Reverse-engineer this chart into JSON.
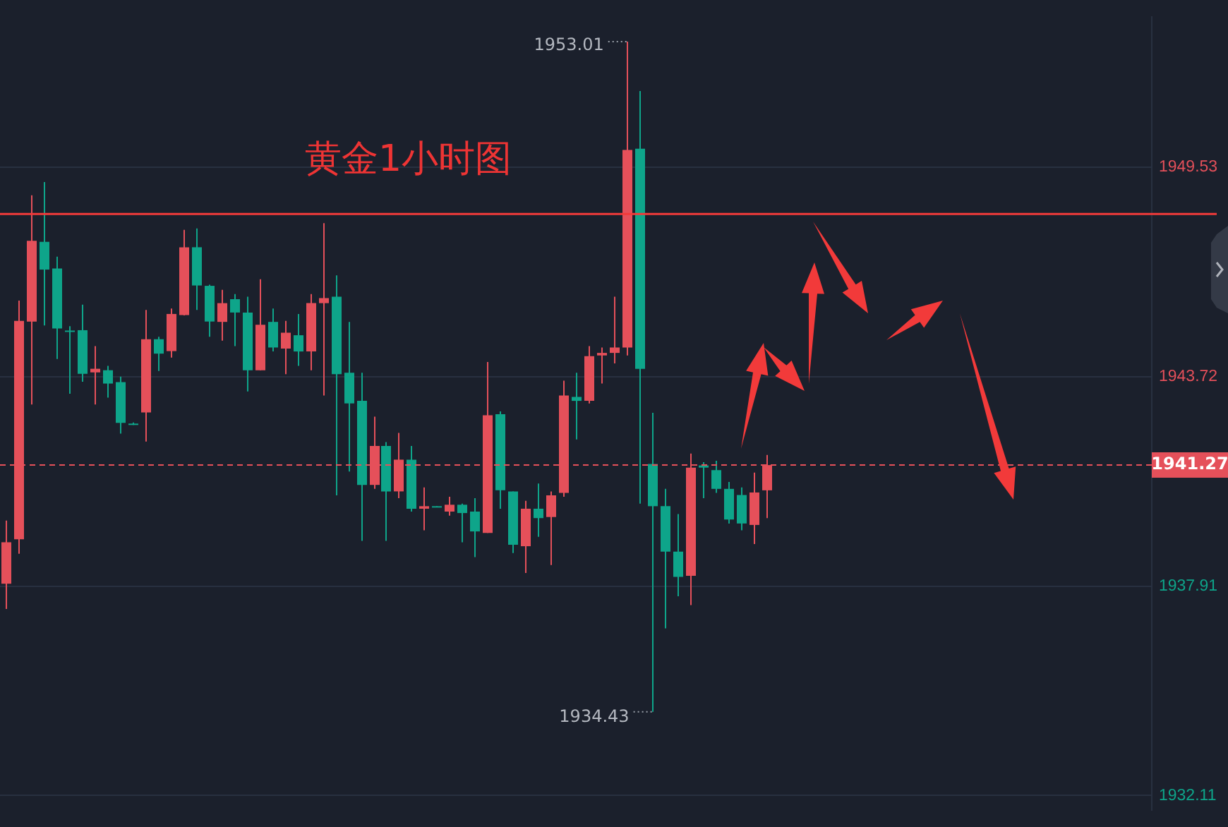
{
  "chart_data": {
    "type": "candlestick",
    "title": "黄金1小时图",
    "categories": [
      null,
      null,
      null,
      null,
      null,
      null,
      null,
      null,
      null,
      null,
      null,
      null,
      null,
      null,
      null,
      null,
      null,
      null,
      null,
      null,
      null,
      null,
      null,
      null,
      null,
      null,
      null,
      null,
      null,
      null,
      null,
      null,
      null,
      null,
      null,
      null,
      null,
      null,
      null,
      null,
      null,
      null,
      null,
      null,
      null,
      null,
      null,
      null,
      null,
      null,
      null,
      null,
      null,
      null,
      null,
      null,
      null,
      null,
      null,
      null,
      null,
      null,
      null,
      null,
      null,
      null,
      null,
      null,
      null,
      null,
      null,
      null,
      null,
      null,
      null,
      null,
      null,
      null,
      null,
      null,
      null,
      null,
      null,
      null,
      null,
      null,
      null,
      null,
      null,
      null,
      null
    ],
    "ohlc": [
      [
        1937.98,
        1939.73,
        1937.28,
        1939.13
      ],
      [
        1939.21,
        1945.83,
        1938.81,
        1945.27
      ],
      [
        1945.25,
        1948.75,
        1942.95,
        1947.49
      ],
      [
        1947.46,
        1949.12,
        1945.14,
        1946.69
      ],
      [
        1946.72,
        1947.05,
        1944.21,
        1945.06
      ],
      [
        1945.0,
        1945.12,
        1943.25,
        1944.98
      ],
      [
        1945.01,
        1945.72,
        1943.58,
        1943.8
      ],
      [
        1943.84,
        1944.57,
        1942.95,
        1943.94
      ],
      [
        1943.9,
        1944.02,
        1943.14,
        1943.53
      ],
      [
        1943.57,
        1943.72,
        1942.14,
        1942.44
      ],
      [
        1942.42,
        1942.45,
        1942.38,
        1942.41
      ],
      [
        1942.73,
        1945.57,
        1941.92,
        1944.76
      ],
      [
        1944.76,
        1944.83,
        1943.88,
        1944.36
      ],
      [
        1944.43,
        1945.61,
        1944.25,
        1945.46
      ],
      [
        1945.43,
        1947.79,
        1945.42,
        1947.31
      ],
      [
        1947.31,
        1947.83,
        1945.57,
        1946.25
      ],
      [
        1946.24,
        1946.27,
        1944.83,
        1945.25
      ],
      [
        1945.24,
        1946.13,
        1944.72,
        1945.76
      ],
      [
        1945.87,
        1946.01,
        1944.57,
        1945.5
      ],
      [
        1945.5,
        1945.94,
        1943.31,
        1943.9
      ],
      [
        1943.9,
        1946.42,
        1943.9,
        1945.16
      ],
      [
        1945.24,
        1945.61,
        1944.42,
        1944.53
      ],
      [
        1944.5,
        1945.27,
        1943.79,
        1944.94
      ],
      [
        1944.87,
        1945.46,
        1944.02,
        1944.42
      ],
      [
        1944.42,
        1946.01,
        1943.9,
        1945.76
      ],
      [
        1945.76,
        1947.98,
        1943.2,
        1945.9
      ],
      [
        1945.94,
        1946.53,
        1940.43,
        1943.79
      ],
      [
        1943.83,
        1945.24,
        1941.09,
        1942.98
      ],
      [
        1943.05,
        1943.83,
        1939.17,
        1940.72
      ],
      [
        1940.72,
        1942.61,
        1940.61,
        1941.8
      ],
      [
        1941.8,
        1941.91,
        1939.17,
        1940.54
      ],
      [
        1940.54,
        1942.16,
        1940.35,
        1941.42
      ],
      [
        1941.42,
        1941.8,
        1939.98,
        1940.06
      ],
      [
        1940.06,
        1940.65,
        1939.46,
        1940.13
      ],
      [
        1940.13,
        1940.13,
        1940.11,
        1940.11
      ],
      [
        1939.98,
        1940.39,
        1939.87,
        1940.17
      ],
      [
        1940.17,
        1940.2,
        1939.13,
        1939.94
      ],
      [
        1939.98,
        1940.35,
        1938.72,
        1939.43
      ],
      [
        1939.39,
        1944.13,
        1939.39,
        1942.65
      ],
      [
        1942.68,
        1942.76,
        1940.06,
        1940.57
      ],
      [
        1940.54,
        1940.54,
        1938.83,
        1939.06
      ],
      [
        1939.02,
        1940.28,
        1938.28,
        1940.06
      ],
      [
        1940.06,
        1940.76,
        1939.28,
        1939.8
      ],
      [
        1939.83,
        1940.54,
        1938.5,
        1940.43
      ],
      [
        1940.5,
        1943.61,
        1940.39,
        1943.2
      ],
      [
        1943.16,
        1943.83,
        1941.98,
        1943.05
      ],
      [
        1943.05,
        1944.57,
        1942.98,
        1944.29
      ],
      [
        1944.31,
        1944.53,
        1943.53,
        1944.38
      ],
      [
        1944.38,
        1945.94,
        1944.09,
        1944.53
      ],
      [
        1944.53,
        1953.01,
        1944.31,
        1950.01
      ],
      [
        1950.04,
        1951.64,
        1940.2,
        1943.94
      ],
      [
        1941.3,
        1942.72,
        1934.43,
        1940.13
      ],
      [
        1940.13,
        1940.61,
        1936.74,
        1938.87
      ],
      [
        1938.87,
        1939.91,
        1937.63,
        1938.17
      ],
      [
        1938.2,
        1941.59,
        1937.39,
        1941.2
      ],
      [
        1941.26,
        1941.35,
        1940.35,
        1941.2
      ],
      [
        1941.13,
        1941.39,
        1940.5,
        1940.61
      ],
      [
        1940.61,
        1940.8,
        1939.65,
        1939.76
      ],
      [
        1940.44,
        1940.65,
        1939.46,
        1939.65
      ],
      [
        1939.61,
        1941.06,
        1939.08,
        1940.51
      ],
      [
        1940.57,
        1941.55,
        1939.8,
        1941.27
      ],
      null,
      null,
      null,
      null,
      null,
      null,
      null,
      null,
      null,
      null,
      null,
      null,
      null,
      null,
      null,
      null,
      null,
      null,
      null,
      null,
      null,
      null,
      null,
      null,
      null,
      null,
      null,
      null,
      null,
      null
    ],
    "colors": [
      "#e5505a",
      "#e5505a",
      "#e5505a",
      "#0ea58a",
      "#0ea58a",
      "#0ea58a",
      "#0ea58a",
      "#e5505a",
      "#0ea58a",
      "#0ea58a",
      "#0ea58a",
      "#e5505a",
      "#0ea58a",
      "#e5505a",
      "#e5505a",
      "#0ea58a",
      "#0ea58a",
      "#e5505a",
      "#0ea58a",
      "#0ea58a",
      "#e5505a",
      "#0ea58a",
      "#e5505a",
      "#0ea58a",
      "#e5505a",
      "#e5505a",
      "#0ea58a",
      "#0ea58a",
      "#0ea58a",
      "#e5505a",
      "#0ea58a",
      "#e5505a",
      "#0ea58a",
      "#e5505a",
      "#0ea58a",
      "#e5505a",
      "#0ea58a",
      "#0ea58a",
      "#e5505a",
      "#0ea58a",
      "#0ea58a",
      "#e5505a",
      "#0ea58a",
      "#e5505a",
      "#e5505a",
      "#0ea58a",
      "#e5505a",
      "#e5505a",
      "#e5505a",
      "#e5505a",
      "#0ea58a",
      "#0ea58a",
      "#0ea58a",
      "#0ea58a",
      "#e5505a",
      "#0ea58a",
      "#0ea58a",
      "#0ea58a",
      "#0ea58a",
      "#e5505a",
      "#e5505a",
      null,
      null,
      null,
      null,
      null,
      null,
      null,
      null,
      null,
      null,
      null,
      null,
      null,
      null,
      null,
      null,
      null,
      null,
      null,
      null,
      null,
      null,
      null,
      null,
      null,
      null,
      null,
      null,
      null,
      null
    ],
    "ylim": [
      1931.7,
      1953.7
    ],
    "yticks": [
      1949.53,
      1943.72,
      1937.91,
      1932.11
    ],
    "grid": "y",
    "ref_lines": [
      {
        "axis": "y",
        "value": 1941.27,
        "label": "1941.27",
        "color": "#e5505a",
        "line_style": "dashed"
      },
      {
        "axis": "y",
        "value": 1948.23,
        "color": "#f23a3a",
        "line_style": "solid"
      }
    ],
    "annotations": [
      "1953.01",
      "1934.43"
    ]
  }
}
